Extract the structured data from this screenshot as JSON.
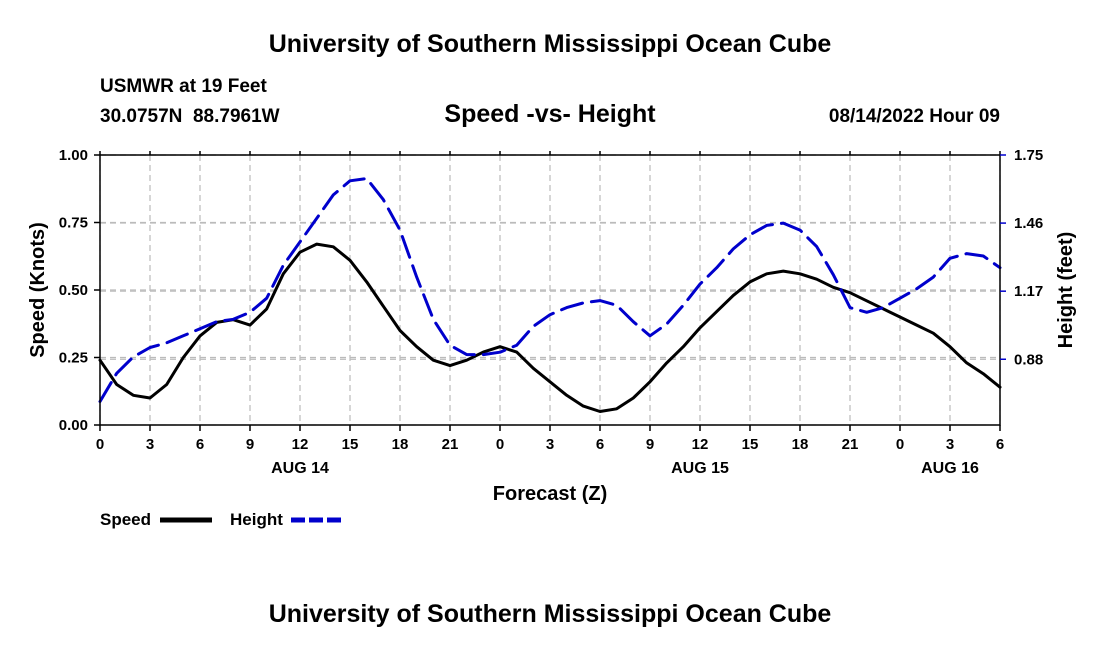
{
  "header": {
    "main_title": "University of Southern Mississippi Ocean Cube",
    "station_name": "USMWR at 19 Feet",
    "station_coords": "30.0757N  88.7961W",
    "plot_title": "Speed -vs- Height",
    "forecast_time": "08/14/2022 Hour 09",
    "footer_title": "University of Southern Mississippi Ocean Cube"
  },
  "legend": {
    "speed_label": "Speed",
    "height_label": "Height"
  },
  "colors": {
    "speed": "#000000",
    "height": "#0000cc",
    "grid": "#bbbbbb"
  },
  "chart_data": {
    "type": "line",
    "title": "Speed -vs- Height",
    "xlabel": "Forecast (Z)",
    "ylabel": "Speed (Knots)",
    "y2label": "Height (feet)",
    "x_unit": "forecast hour from 2022-08-14 00Z",
    "xlim": [
      0,
      54
    ],
    "ylim": [
      0,
      1.0
    ],
    "y2lim": [
      0.6,
      1.75
    ],
    "x_ticks": [
      0,
      3,
      6,
      9,
      12,
      15,
      18,
      21,
      24,
      27,
      30,
      33,
      36,
      39,
      42,
      45,
      48,
      51,
      54
    ],
    "x_tick_labels": [
      "0",
      "3",
      "6",
      "9",
      "12",
      "15",
      "18",
      "21",
      "0",
      "3",
      "6",
      "9",
      "12",
      "15",
      "18",
      "21",
      "0",
      "3",
      "6"
    ],
    "date_labels": [
      {
        "x": 12,
        "label": "AUG 14"
      },
      {
        "x": 36,
        "label": "AUG 15"
      },
      {
        "x": 51,
        "label": "AUG 16"
      }
    ],
    "y_ticks": [
      0,
      0.25,
      0.5,
      0.75,
      1.0
    ],
    "y_tick_labels": [
      "0.00",
      "0.25",
      "0.50",
      "0.75",
      "1.00"
    ],
    "y2_ticks": [
      0.88,
      1.17,
      1.46,
      1.75
    ],
    "y2_tick_labels": [
      "0.88",
      "1.17",
      "1.46",
      "1.75"
    ],
    "grid": true,
    "series": [
      {
        "name": "Speed",
        "axis": "left",
        "style": "solid",
        "x": [
          0,
          1,
          2,
          3,
          4,
          5,
          6,
          7,
          8,
          9,
          10,
          11,
          12,
          13,
          14,
          15,
          16,
          17,
          18,
          19,
          20,
          21,
          22,
          23,
          24,
          25,
          26,
          27,
          28,
          29,
          30,
          31,
          32,
          33,
          34,
          35,
          36,
          37,
          38,
          39,
          40,
          41,
          42,
          43,
          44,
          45,
          46,
          47,
          48,
          49,
          50,
          51,
          52,
          53,
          54
        ],
        "values": [
          0.24,
          0.15,
          0.11,
          0.1,
          0.15,
          0.25,
          0.33,
          0.38,
          0.39,
          0.37,
          0.43,
          0.56,
          0.64,
          0.67,
          0.66,
          0.61,
          0.53,
          0.44,
          0.35,
          0.29,
          0.24,
          0.22,
          0.24,
          0.27,
          0.29,
          0.27,
          0.21,
          0.16,
          0.11,
          0.07,
          0.05,
          0.06,
          0.1,
          0.16,
          0.23,
          0.29,
          0.36,
          0.42,
          0.48,
          0.53,
          0.56,
          0.57,
          0.56,
          0.54,
          0.51,
          0.49,
          0.46,
          0.43,
          0.4,
          0.37,
          0.34,
          0.29,
          0.23,
          0.19,
          0.14
        ]
      },
      {
        "name": "Height",
        "axis": "right",
        "style": "dashed",
        "x": [
          0,
          1,
          2,
          3,
          4,
          5,
          6,
          7,
          8,
          9,
          10,
          11,
          12,
          13,
          14,
          15,
          16,
          17,
          18,
          19,
          20,
          21,
          22,
          23,
          24,
          25,
          26,
          27,
          28,
          29,
          30,
          31,
          32,
          33,
          34,
          35,
          36,
          37,
          38,
          39,
          40,
          41,
          42,
          43,
          44,
          45,
          46,
          47,
          48,
          49,
          50,
          51,
          52,
          53,
          54
        ],
        "values": [
          0.7,
          0.82,
          0.89,
          0.93,
          0.95,
          0.98,
          1.01,
          1.04,
          1.05,
          1.08,
          1.14,
          1.28,
          1.38,
          1.48,
          1.58,
          1.64,
          1.65,
          1.56,
          1.43,
          1.23,
          1.05,
          0.94,
          0.9,
          0.9,
          0.91,
          0.94,
          1.02,
          1.07,
          1.1,
          1.12,
          1.13,
          1.11,
          1.04,
          0.98,
          1.03,
          1.11,
          1.2,
          1.27,
          1.35,
          1.41,
          1.45,
          1.46,
          1.43,
          1.36,
          1.24,
          1.1,
          1.08,
          1.1,
          1.14,
          1.18,
          1.23,
          1.31,
          1.33,
          1.32,
          1.27
        ]
      }
    ]
  }
}
